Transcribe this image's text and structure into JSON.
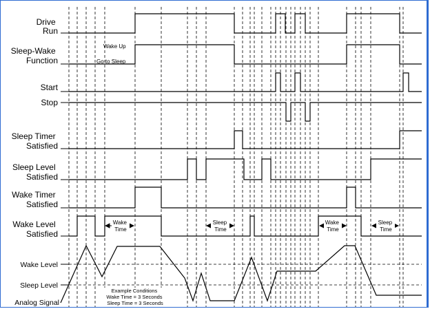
{
  "signals": [
    {
      "lines": [
        "Drive",
        "Run"
      ]
    },
    {
      "lines": [
        "Sleep-Wake",
        "Function"
      ]
    },
    {
      "lines": [
        "Start"
      ]
    },
    {
      "lines": [
        "Stop"
      ]
    },
    {
      "lines": [
        "Sleep Timer",
        "Satisfied"
      ]
    },
    {
      "lines": [
        "Sleep Level",
        "Satisfied"
      ]
    },
    {
      "lines": [
        "Wake Timer",
        "Satisfied"
      ]
    },
    {
      "lines": [
        "Wake Level",
        "Satisfied"
      ]
    }
  ],
  "analog_labels": {
    "wake_level": "Wake Level",
    "sleep_level": "Sleep Level",
    "analog_signal": "Analog Signal"
  },
  "annotations": {
    "wake_up": "Wake Up",
    "go_to_sleep": "Go to Sleep",
    "wake_time": [
      "Wake",
      "Time"
    ],
    "sleep_time": [
      "Sleep",
      "Time"
    ]
  },
  "conditions": [
    "Example Conditions",
    "Wake Time = 3 Seconds",
    "Sleep Time = 3 Seconds"
  ],
  "colors": {
    "frame": "#2e6bd1",
    "lines": "#000000"
  }
}
